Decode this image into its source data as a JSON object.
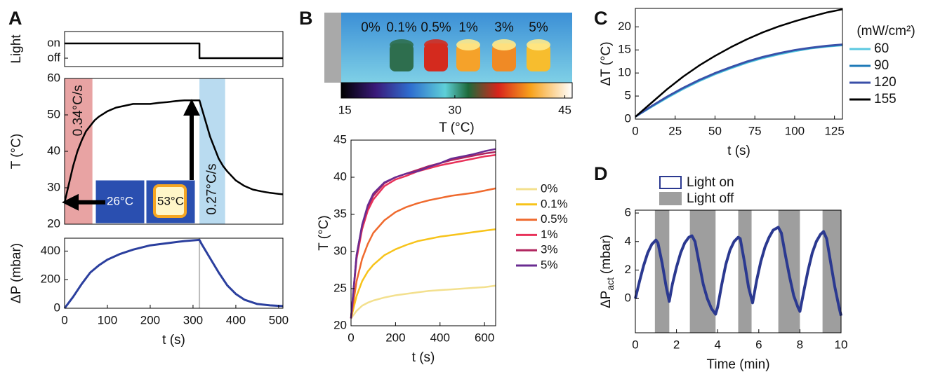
{
  "chart_data": [
    {
      "type": "line",
      "panel_label": "A",
      "ylabel": "Light",
      "x": [
        0,
        315,
        315,
        510
      ],
      "series": [
        {
          "color": "#000000",
          "values": [
            1,
            1,
            0,
            0
          ]
        }
      ],
      "xlim": [
        0,
        510
      ],
      "ylim": [
        -0.57,
        1.81
      ],
      "yticks": [
        {
          "value": 1,
          "label": "on"
        },
        {
          "value": 0,
          "label": "off"
        }
      ]
    },
    {
      "type": "line",
      "ylabel": "T (°C)",
      "x": [
        0,
        10,
        20,
        30,
        40,
        50,
        60,
        70,
        80,
        100,
        120,
        140,
        160,
        180,
        200,
        220,
        240,
        260,
        280,
        300,
        315,
        320,
        330,
        340,
        350,
        360,
        370,
        380,
        400,
        420,
        440,
        460,
        480,
        500,
        510
      ],
      "series": [
        {
          "color": "#000000",
          "values": [
            26,
            31,
            36,
            40,
            43,
            45.5,
            47,
            48.5,
            49.5,
            51,
            52,
            52.5,
            53,
            53,
            53,
            53.3,
            53.5,
            53.8,
            54,
            54,
            54,
            52,
            48,
            44,
            41,
            38,
            36,
            34.5,
            32,
            30.5,
            29.5,
            29,
            28.6,
            28.3,
            28.2
          ]
        }
      ],
      "xlim": [
        0,
        510
      ],
      "ylim": [
        20,
        60
      ],
      "yticks": [
        20,
        30,
        40,
        50,
        60
      ],
      "shaded_regions": [
        {
          "x": [
            0,
            65
          ],
          "color": "#e8a3a3",
          "label": "0.34°C/s"
        },
        {
          "x": [
            315,
            375
          ],
          "color": "#b9dbf0",
          "label": "0.27°C/s"
        }
      ],
      "inset_labels": [
        "26°C",
        "53°C"
      ]
    },
    {
      "type": "line",
      "xlabel": "t (s)",
      "ylabel": "ΔP (mbar)",
      "x": [
        0,
        20,
        40,
        60,
        80,
        100,
        130,
        160,
        200,
        240,
        280,
        300,
        315,
        320,
        340,
        360,
        380,
        400,
        420,
        450,
        480,
        510
      ],
      "series": [
        {
          "color": "#2b3f9e",
          "values": [
            0,
            80,
            170,
            250,
            300,
            340,
            380,
            410,
            440,
            455,
            470,
            475,
            478,
            450,
            350,
            250,
            160,
            100,
            60,
            30,
            20,
            15
          ]
        }
      ],
      "xlim": [
        0,
        510
      ],
      "ylim": [
        0,
        490
      ],
      "xticks": [
        0,
        100,
        200,
        300,
        400,
        500
      ],
      "yticks": [
        0,
        200,
        400
      ]
    },
    {
      "type": "colorbar",
      "panel_label": "B",
      "labels": [
        "0%",
        "0.1%",
        "0.5%",
        "1%",
        "3%",
        "5%"
      ],
      "lim": [
        14.5,
        46
      ],
      "ticks": [
        15,
        30,
        45
      ],
      "xlabel": "T (°C)"
    },
    {
      "type": "line",
      "xlabel": "t (s)",
      "ylabel": "T (°C)",
      "x": [
        0,
        25,
        50,
        75,
        100,
        150,
        200,
        250,
        300,
        350,
        400,
        450,
        500,
        550,
        600,
        650
      ],
      "series": [
        {
          "name": "0%",
          "color": "#f3e08e",
          "values": [
            21,
            22,
            22.7,
            23.1,
            23.4,
            23.8,
            24.1,
            24.3,
            24.5,
            24.7,
            24.8,
            24.9,
            25,
            25.1,
            25.2,
            25.4
          ]
        },
        {
          "name": "0.1%",
          "color": "#f7c31a",
          "values": [
            21,
            24,
            26,
            27.3,
            28.2,
            29.5,
            30.3,
            30.9,
            31.4,
            31.7,
            32,
            32.2,
            32.4,
            32.6,
            32.8,
            33
          ]
        },
        {
          "name": "0.5%",
          "color": "#ef6a2e",
          "values": [
            21,
            26,
            29,
            31,
            32.5,
            34.2,
            35.3,
            36,
            36.5,
            36.9,
            37.2,
            37.5,
            37.7,
            37.9,
            38.2,
            38.5
          ]
        },
        {
          "name": "1%",
          "color": "#e8325a",
          "values": [
            21,
            29,
            33,
            35.5,
            37,
            38.8,
            39.7,
            40.2,
            40.8,
            41.2,
            41.6,
            41.9,
            42.2,
            42.5,
            42.8,
            43
          ]
        },
        {
          "name": "3%",
          "color": "#b0245e",
          "values": [
            21,
            29.5,
            33.5,
            36,
            37.5,
            39.2,
            40,
            40.5,
            41,
            41.5,
            41.9,
            42.3,
            42.6,
            42.9,
            43.2,
            43.4
          ]
        },
        {
          "name": "5%",
          "color": "#6a2c91",
          "values": [
            21,
            29.5,
            33.6,
            36.2,
            37.8,
            39.3,
            40,
            40.5,
            40.8,
            41.4,
            41.9,
            42.5,
            42.8,
            43.1,
            43.5,
            43.8
          ]
        }
      ],
      "xlim": [
        0,
        650
      ],
      "ylim": [
        20,
        45
      ],
      "xticks": [
        0,
        200,
        400,
        600
      ],
      "yticks": [
        20,
        25,
        30,
        35,
        40,
        45
      ]
    },
    {
      "type": "line",
      "panel_label": "C",
      "xlabel": "t (s)",
      "ylabel": "ΔT (°C)",
      "legend_title": "(mW/cm²)",
      "x": [
        0,
        10,
        20,
        30,
        40,
        50,
        60,
        70,
        80,
        90,
        100,
        110,
        120,
        130
      ],
      "series": [
        {
          "name": "60",
          "color": "#5bc8e0",
          "values": [
            0.5,
            2.6,
            4.6,
            6.5,
            8.2,
            9.7,
            11,
            12.2,
            13.2,
            14,
            14.7,
            15.3,
            15.7,
            16
          ]
        },
        {
          "name": "90",
          "color": "#1f7ab8",
          "values": [
            0.5,
            2.7,
            4.8,
            6.7,
            8.4,
            9.9,
            11.2,
            12.4,
            13.4,
            14.2,
            14.9,
            15.4,
            15.8,
            16.1
          ]
        },
        {
          "name": "120",
          "color": "#3a4fa8",
          "values": [
            0.5,
            2.8,
            4.9,
            6.8,
            8.5,
            10,
            11.3,
            12.5,
            13.5,
            14.3,
            15,
            15.5,
            15.9,
            16.2
          ]
        },
        {
          "name": "155",
          "color": "#000000",
          "values": [
            0.5,
            3.5,
            6.5,
            9.2,
            11.6,
            13.7,
            15.6,
            17.3,
            18.8,
            20.1,
            21.2,
            22.2,
            23.1,
            23.8
          ]
        }
      ],
      "xlim": [
        0,
        130
      ],
      "ylim": [
        0,
        24
      ],
      "xticks": [
        0,
        25,
        50,
        75,
        100,
        125
      ],
      "yticks": [
        0,
        5,
        10,
        15,
        20
      ]
    },
    {
      "type": "line",
      "panel_label": "D",
      "xlabel": "Time (min)",
      "ylabel": {
        "main": "ΔP",
        "sub": "act",
        "unit": "(mbar)"
      },
      "legend": [
        {
          "name": "Light on",
          "color": "#2b3990"
        },
        {
          "name": "Light off",
          "color": "#9e9e9e"
        }
      ],
      "shaded_intervals": [
        [
          0.95,
          1.65
        ],
        [
          2.65,
          3.9
        ],
        [
          5.0,
          5.65
        ],
        [
          6.95,
          8.0
        ],
        [
          9.1,
          10
        ]
      ],
      "x": [
        0,
        0.2,
        0.4,
        0.6,
        0.8,
        1.0,
        1.1,
        1.3,
        1.5,
        1.65,
        1.8,
        2.0,
        2.2,
        2.4,
        2.6,
        2.75,
        2.9,
        3.1,
        3.3,
        3.5,
        3.7,
        3.9,
        4.0,
        4.2,
        4.4,
        4.6,
        4.8,
        5.0,
        5.1,
        5.3,
        5.5,
        5.7,
        5.9,
        6.1,
        6.3,
        6.5,
        6.7,
        6.95,
        7.1,
        7.3,
        7.5,
        7.7,
        7.9,
        8.0,
        8.2,
        8.4,
        8.6,
        8.8,
        9.0,
        9.15,
        9.3,
        9.5,
        9.7,
        9.9,
        10
      ],
      "series": [
        {
          "color": "#2b3990",
          "values": [
            0,
            1.2,
            2.3,
            3.2,
            3.8,
            4.1,
            3.9,
            2.5,
            0.8,
            -0.2,
            1.0,
            2.2,
            3.2,
            3.9,
            4.3,
            4.4,
            4.0,
            2.5,
            1.0,
            0,
            -0.7,
            -1.1,
            -0.6,
            1.0,
            2.4,
            3.4,
            4.0,
            4.3,
            4.2,
            2.6,
            0.8,
            -0.3,
            1.3,
            2.6,
            3.6,
            4.3,
            4.8,
            5.0,
            4.6,
            3.0,
            1.5,
            0.2,
            -0.6,
            -0.9,
            0.6,
            2.0,
            3.2,
            4.0,
            4.5,
            4.7,
            4.2,
            2.5,
            0.8,
            -0.6,
            -1.2
          ]
        }
      ],
      "xlim": [
        0,
        10
      ],
      "ylim": [
        -2.4,
        6.2
      ],
      "xticks": [
        0,
        2,
        4,
        6,
        8,
        10
      ],
      "yticks": [
        0,
        2,
        4,
        6
      ]
    }
  ]
}
